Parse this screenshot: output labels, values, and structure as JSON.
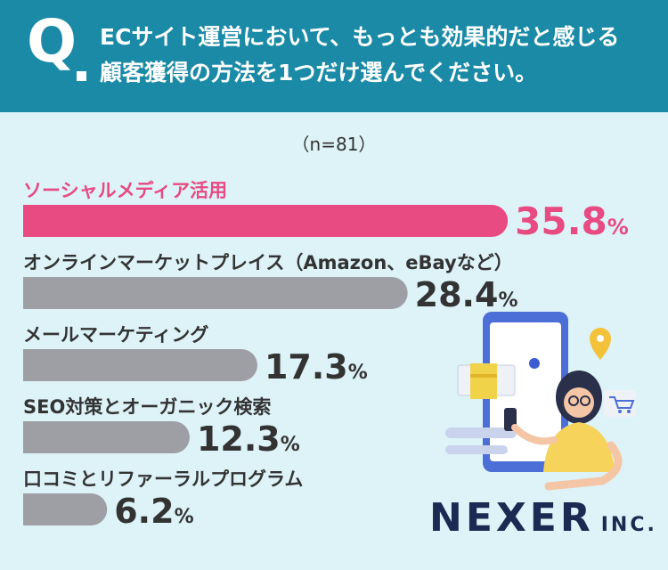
{
  "header": {
    "q_mark": "Q",
    "question_line1": "ECサイト運営において、もっとも効果的だと感じる",
    "question_line2": "顧客獲得の方法を1つだけ選んでください。"
  },
  "sample_size": "（n=81）",
  "brand": {
    "name": "NEXER",
    "suffix": "INC."
  },
  "colors": {
    "highlight": "#e84a82",
    "bar": "#9e9ea5",
    "header_bg": "#1a8aa6",
    "background": "#ddf3f8"
  },
  "chart_data": {
    "type": "bar",
    "orientation": "horizontal",
    "unit": "%",
    "categories": [
      "ソーシャルメディア活用",
      "オンラインマーケットプレイス（Amazon、eBayなど）",
      "メールマーケティング",
      "SEO対策とオーガニック検索",
      "口コミとリファーラルプログラム"
    ],
    "values": [
      35.8,
      28.4,
      17.3,
      12.3,
      6.2
    ],
    "labels": [
      "35.8",
      "28.4",
      "17.3",
      "12.3",
      "6.2"
    ],
    "highlight_index": 0
  }
}
